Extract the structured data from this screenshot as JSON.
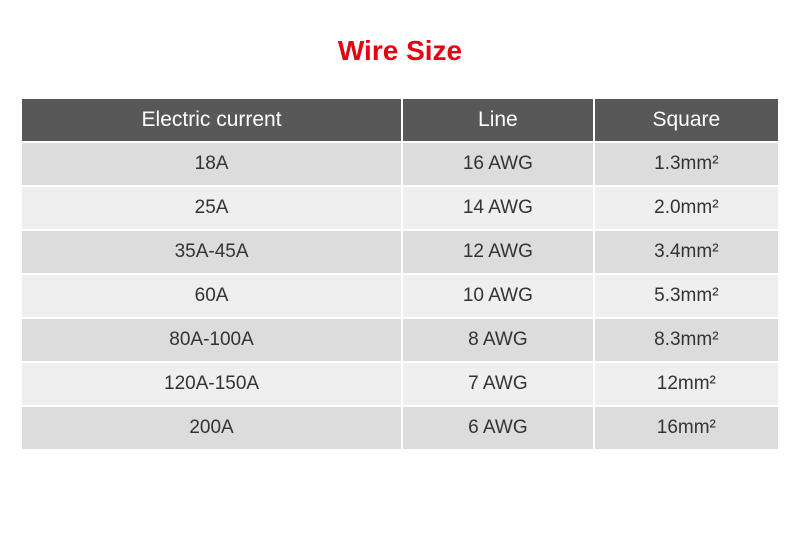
{
  "title": {
    "text": "Wire Size",
    "color": "#e60012",
    "fontSize": 28
  },
  "table": {
    "headerBg": "#585858",
    "headerColor": "#ffffff",
    "headerFontSize": 21,
    "headerHeight": 42,
    "cellFontSize": 19,
    "cellColor": "#333333",
    "cellHeight": 42,
    "rowColorOdd": "#dcdcdc",
    "rowColorEven": "#efefef",
    "columns": [
      "Electric current",
      "Line",
      "Square"
    ],
    "rows": [
      [
        "18A",
        "16 AWG",
        "1.3mm²"
      ],
      [
        "25A",
        "14 AWG",
        "2.0mm²"
      ],
      [
        "35A-45A",
        "12 AWG",
        "3.4mm²"
      ],
      [
        "60A",
        "10 AWG",
        "5.3mm²"
      ],
      [
        "80A-100A",
        "8 AWG",
        "8.3mm²"
      ],
      [
        "120A-150A",
        "7 AWG",
        "12mm²"
      ],
      [
        "200A",
        "6 AWG",
        "16mm²"
      ]
    ]
  }
}
